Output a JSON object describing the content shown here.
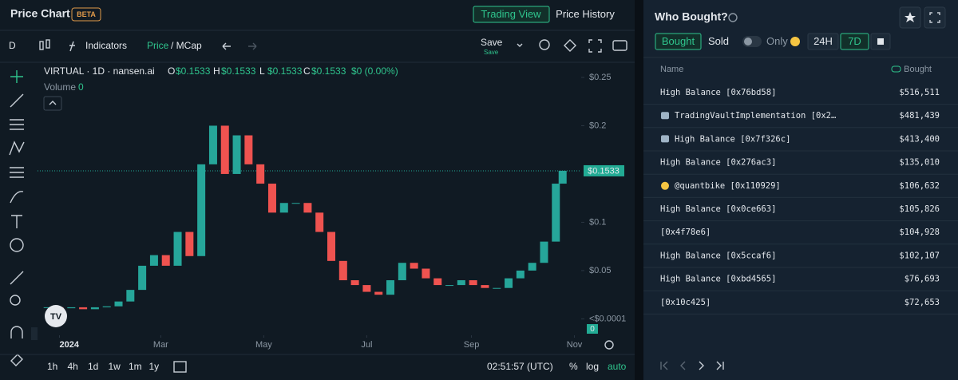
{
  "header": {
    "title": "Price Chart",
    "badge": "BETA",
    "tabs": [
      "Trading View",
      "Price History"
    ]
  },
  "toolbar": {
    "interval": "D",
    "indicators": "Indicators",
    "price": "Price",
    "mcap": "/ MCap",
    "save": "Save",
    "save_sub": "Save"
  },
  "chart_data": {
    "type": "candlestick",
    "title": "VIRTUAL · 1D · nansen.ai",
    "ohlc_legend": [
      {
        "key": "O",
        "text": "$0.1533"
      },
      {
        "key": "H",
        "text": "$0.1533"
      },
      {
        "key": "L",
        "text": "$0.1533"
      },
      {
        "key": "C",
        "text": "$0.1533"
      }
    ],
    "change": "$0 (0.00%)",
    "volume_label": "Volume",
    "volume_value": "0",
    "volume_axis_label": "0",
    "x": [
      -7,
      0,
      7,
      14,
      21,
      28,
      35,
      42,
      49,
      56,
      63,
      70,
      77,
      84,
      91,
      98,
      105,
      112,
      119,
      126,
      133,
      140,
      147,
      154,
      161,
      168,
      175,
      182,
      189,
      196,
      203,
      210,
      217,
      224,
      231,
      238,
      245,
      252,
      259,
      266,
      273,
      280,
      287,
      294,
      298
    ],
    "values": [
      0.012,
      0.011,
      0.012,
      0.01,
      0.012,
      0.013,
      0.018,
      0.03,
      0.055,
      0.066,
      0.055,
      0.09,
      0.065,
      0.16,
      0.2,
      0.15,
      0.19,
      0.16,
      0.14,
      0.11,
      0.12,
      0.12,
      0.11,
      0.09,
      0.06,
      0.04,
      0.035,
      0.028,
      0.025,
      0.04,
      0.058,
      0.052,
      0.042,
      0.035,
      0.035,
      0.04,
      0.035,
      0.032,
      0.032,
      0.042,
      0.05,
      0.058,
      0.08,
      0.14,
      0.1533
    ],
    "color_up": "#26a69a",
    "color_down": "#ef5350",
    "xlim": [
      -13,
      309
    ],
    "xticks": [
      {
        "value": 0,
        "label": "2024"
      },
      {
        "value": 60,
        "label": "Mar"
      },
      {
        "value": 121,
        "label": "May"
      },
      {
        "value": 182,
        "label": "Jul"
      },
      {
        "value": 244,
        "label": "Sep"
      },
      {
        "value": 305,
        "label": "Nov"
      }
    ],
    "ylim": [
      -0.017,
      0.264
    ],
    "yticks": [
      {
        "value": 0.25,
        "label": "$0.25"
      },
      {
        "value": 0.2,
        "label": "$0.2"
      },
      {
        "value": 0.1,
        "label": "$0.1"
      },
      {
        "value": 0.05,
        "label": "$0.05"
      },
      {
        "value": 0,
        "label": "<$0.0001"
      }
    ],
    "price_line": {
      "value": 0.1533,
      "label": "$0.1533"
    },
    "grid": false
  },
  "footer": {
    "intervals": [
      "1h",
      "4h",
      "1d",
      "1w",
      "1m",
      "1y"
    ],
    "time": "02:51:57 (UTC)",
    "percent": "%",
    "log": "log",
    "auto": "auto"
  },
  "who_bought": {
    "title": "Who Bought?",
    "tabs": [
      "Bought",
      "Sold"
    ],
    "only": "Only",
    "ranges": [
      "24H",
      "7D"
    ],
    "columns": [
      "Name",
      "Bought"
    ],
    "rows": [
      [
        "High Balance [0x76bd58]",
        "$516,511"
      ],
      [
        "TradingVaultImplementation [0x2…",
        "$481,439"
      ],
      [
        "High Balance [0x7f326c]",
        "$413,400"
      ],
      [
        "High Balance [0x276ac3]",
        "$135,010"
      ],
      [
        "@quantbike [0x110929]",
        "$106,632"
      ],
      [
        "High Balance [0x0ce663]",
        "$105,826"
      ],
      [
        "[0x4f78e6]",
        "$104,928"
      ],
      [
        "High Balance [0x5ccaf6]",
        "$102,107"
      ],
      [
        "High Balance [0xbd4565]",
        "$76,693"
      ],
      [
        "[0x10c425]",
        "$72,653"
      ]
    ]
  }
}
